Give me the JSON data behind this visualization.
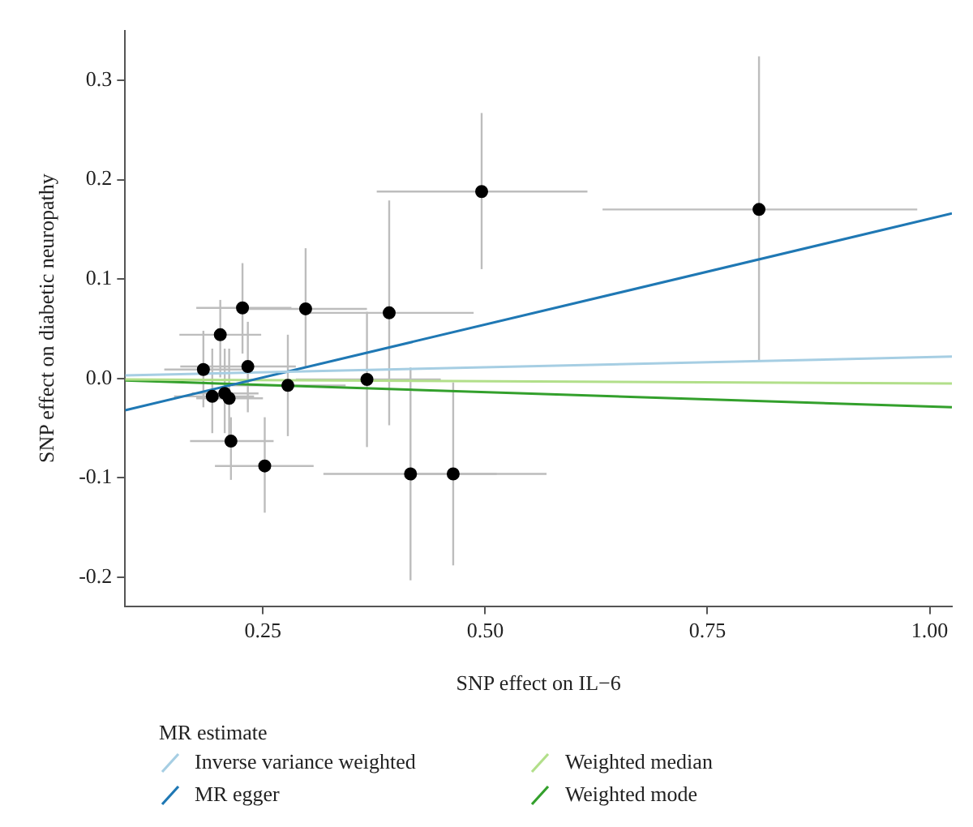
{
  "chart_data": {
    "type": "scatter",
    "xlabel": "SNP effect on IL−6",
    "ylabel": "SNP effect on diabetic neuropathy",
    "legend": "bottom",
    "legend_title": "MR estimate",
    "grid": false,
    "xlim": [
      0.095,
      1.025
    ],
    "ylim": [
      -0.229,
      0.35
    ],
    "xticks": [
      0.25,
      {
        "value": 0.5,
        "label": "0.50"
      },
      {
        "value": 0.75,
        "label": "0.75"
      },
      {
        "value": 1,
        "label": "1.00"
      }
    ],
    "yticks": [
      -0.2,
      -0.1,
      {
        "value": 0,
        "label": "0.0"
      },
      0.1,
      0.2,
      0.3
    ],
    "series": [
      {
        "type": "scatter",
        "marker": "circle",
        "color": "#000000",
        "x": [
          0.183,
          0.193,
          0.202,
          0.207,
          0.212,
          0.214,
          0.227,
          0.233,
          0.252,
          0.278,
          0.298,
          0.392,
          0.367,
          0.416,
          0.464,
          0.496,
          0.808
        ],
        "values": [
          0.009,
          -0.018,
          0.044,
          -0.015,
          -0.02,
          -0.063,
          0.071,
          0.012,
          -0.088,
          -0.007,
          0.07,
          0.066,
          -0.001,
          -0.096,
          -0.096,
          0.188,
          0.17
        ],
        "errors": [
          [
            -0.029,
            0.048
          ],
          [
            -0.055,
            0.03
          ],
          [
            0.001,
            0.079
          ],
          [
            -0.055,
            0.03
          ],
          [
            -0.06,
            0.03
          ],
          [
            -0.102,
            -0.039
          ],
          [
            0.025,
            0.116
          ],
          [
            -0.034,
            0.057
          ],
          [
            -0.135,
            -0.039
          ],
          [
            -0.058,
            0.044
          ],
          [
            0.012,
            0.131
          ],
          [
            -0.047,
            0.179
          ],
          [
            -0.069,
            0.067
          ],
          [
            -0.203,
            0.011
          ],
          [
            -0.188,
            -0.004
          ],
          [
            0.11,
            0.267
          ],
          [
            0.018,
            0.324
          ]
        ],
        "xerrors": [
          [
            0.139,
            0.227
          ],
          [
            0.15,
            0.24
          ],
          [
            0.156,
            0.248
          ],
          [
            0.17,
            0.245
          ],
          [
            0.175,
            0.25
          ],
          [
            0.168,
            0.262
          ],
          [
            0.175,
            0.282
          ],
          [
            0.157,
            0.287
          ],
          [
            0.196,
            0.307
          ],
          [
            0.215,
            0.343
          ],
          [
            0.23,
            0.367
          ],
          [
            0.302,
            0.487
          ],
          [
            0.287,
            0.45
          ],
          [
            0.318,
            0.513
          ],
          [
            0.415,
            0.569
          ],
          [
            0.378,
            0.615
          ],
          [
            0.632,
            0.986
          ]
        ]
      },
      {
        "type": "line",
        "name": "Inverse variance weighted",
        "color": "#a6cee3",
        "x": [
          0.095,
          1.025
        ],
        "values": [
          0.003,
          0.022
        ]
      },
      {
        "type": "line",
        "name": "MR egger",
        "color": "#1f78b4",
        "x": [
          0.095,
          1.025
        ],
        "values": [
          -0.032,
          0.166
        ]
      },
      {
        "type": "line",
        "name": "Weighted median",
        "color": "#b2df8a",
        "x": [
          0.095,
          1.025
        ],
        "values": [
          -0.001,
          -0.005
        ]
      },
      {
        "type": "line",
        "name": "Weighted mode",
        "color": "#33a02c",
        "x": [
          0.095,
          1.025
        ],
        "values": [
          -0.002,
          -0.029
        ]
      }
    ]
  }
}
